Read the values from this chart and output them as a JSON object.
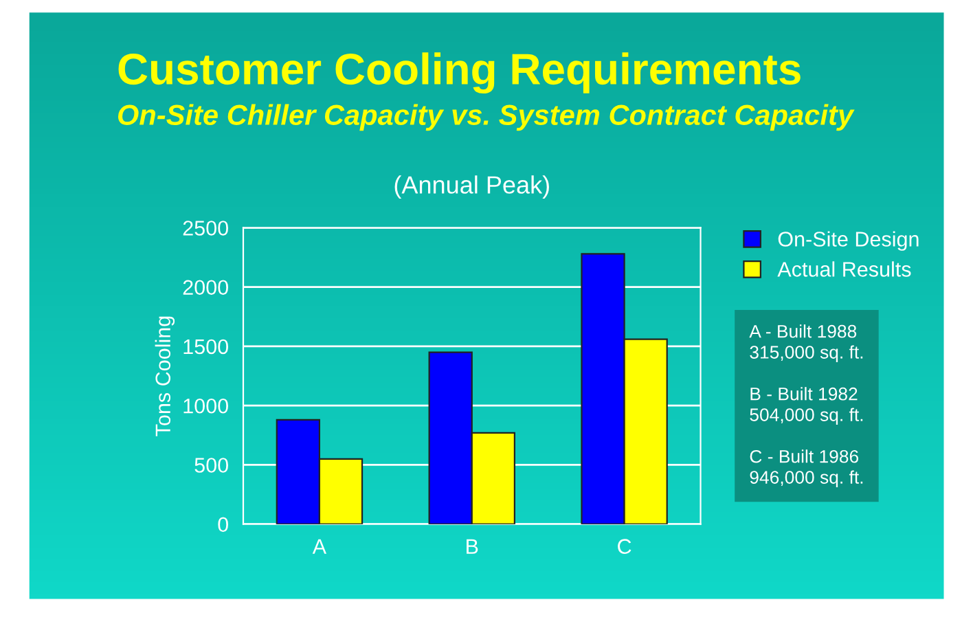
{
  "chart_data": {
    "type": "bar",
    "title": "Customer Cooling Requirements",
    "subtitle": "On-Site Chiller Capacity vs. System Contract Capacity",
    "ylabel": "Tons Cooling",
    "categories": [
      "A",
      "B",
      "C"
    ],
    "series": [
      {
        "name": "On-Site Design",
        "color": "#0000ff",
        "values": [
          880,
          1450,
          2280
        ]
      },
      {
        "name": "Actual Results",
        "color": "#ffff00",
        "values": [
          550,
          770,
          1560
        ]
      }
    ],
    "ylim": [
      0,
      2500
    ],
    "yticks": [
      0,
      500,
      1000,
      1500,
      2000,
      2500
    ],
    "grid": "y",
    "legend": "top right",
    "annotations": [
      "(Annual Peak)",
      "A - Built 1988\n315,000 sq. ft.\n\nB - Built 1982\n504,000 sq. ft.\n\nC - Built 1986\n946,000 sq. ft."
    ]
  }
}
